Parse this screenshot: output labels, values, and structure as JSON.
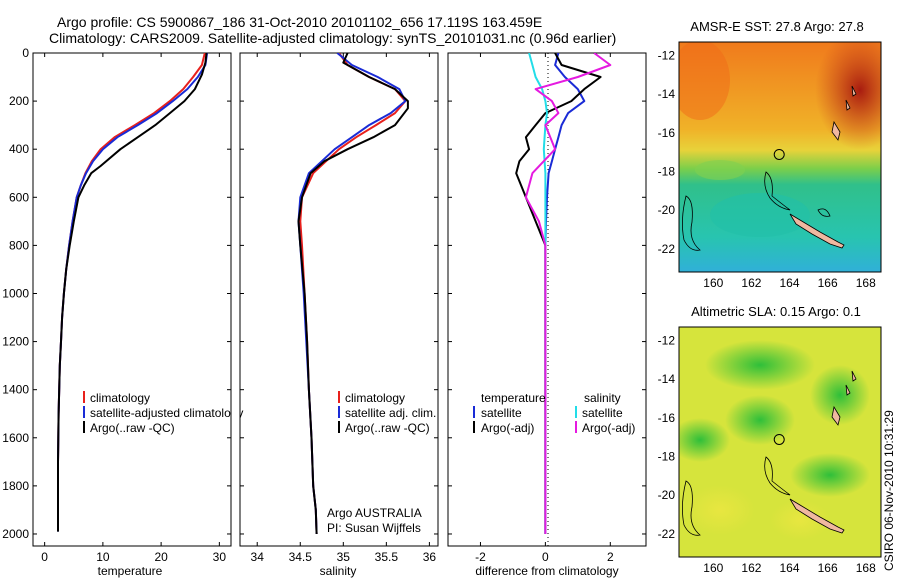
{
  "header": {
    "line1": "Argo profile: CS 5900867_186 31-Oct-2010 20101102_656 17.119S 163.459E",
    "line2": "Climatology: CARS2009. Satellite-adjusted climatology: synTS_20101031.nc (0.96d earlier)"
  },
  "credits": {
    "program": "Argo AUSTRALIA",
    "pi": "PI: Susan Wijffels",
    "stamp": "CSIRO 06-Nov-2010 10:31:29"
  },
  "colors": {
    "climatology": "#e8201c",
    "satellite": "#1a2bd6",
    "argo": "#000000",
    "salinity_sat": "#22dde8",
    "salinity_argo": "#e51ae0"
  },
  "chart_data": [
    {
      "type": "line",
      "id": "temperature",
      "xlabel": "temperature",
      "xlim": [
        -2,
        32
      ],
      "ylim": [
        0,
        2050
      ],
      "y_inverted": true,
      "xticks": [
        0,
        10,
        20,
        30
      ],
      "yticks": [
        0,
        200,
        400,
        600,
        800,
        1000,
        1200,
        1400,
        1600,
        1800,
        2000
      ],
      "legend": [
        "climatology",
        "satellite-adjusted climatology",
        "Argo(..raw -QC)"
      ],
      "series": [
        {
          "name": "climatology",
          "color": "#e8201c",
          "x": [
            27.5,
            27.0,
            25.5,
            23.8,
            21.5,
            18.8,
            15.5,
            12.0,
            9.6,
            8.1,
            7.0,
            6.2,
            5.5,
            4.8,
            4.2,
            3.7,
            3.3,
            3.0,
            2.8,
            2.6,
            2.5,
            2.4,
            2.35,
            2.3,
            2.3,
            2.3
          ],
          "y": [
            0,
            50,
            100,
            150,
            200,
            250,
            300,
            350,
            400,
            450,
            500,
            550,
            600,
            700,
            800,
            900,
            1000,
            1100,
            1200,
            1300,
            1400,
            1500,
            1600,
            1700,
            1800,
            1870
          ]
        },
        {
          "name": "satellite-adjusted climatology",
          "color": "#1a2bd6",
          "x": [
            27.9,
            27.6,
            26.3,
            24.5,
            22.0,
            19.3,
            16.0,
            12.5,
            10.0,
            8.3,
            7.1,
            6.2,
            5.5,
            4.8,
            4.2,
            3.7,
            3.3,
            3.0,
            2.8,
            2.6,
            2.5,
            2.4,
            2.35,
            2.3,
            2.3,
            2.3
          ],
          "y": [
            0,
            50,
            100,
            150,
            200,
            250,
            300,
            350,
            400,
            450,
            500,
            550,
            600,
            700,
            800,
            900,
            1000,
            1100,
            1200,
            1300,
            1400,
            1500,
            1600,
            1700,
            1800,
            1990
          ]
        },
        {
          "name": "Argo(..raw -QC)",
          "color": "#000000",
          "x": [
            27.8,
            27.6,
            27.0,
            25.8,
            24.0,
            21.5,
            19.0,
            16.0,
            13.0,
            9.6,
            8.0,
            6.8,
            5.8,
            5.0,
            4.3,
            3.7,
            3.3,
            3.0,
            2.8,
            2.6,
            2.5,
            2.4,
            2.35,
            2.3,
            2.3,
            2.3
          ],
          "y": [
            0,
            40,
            90,
            150,
            200,
            250,
            300,
            350,
            400,
            470,
            500,
            550,
            600,
            700,
            800,
            900,
            1000,
            1100,
            1200,
            1300,
            1400,
            1500,
            1600,
            1700,
            1800,
            1990
          ]
        }
      ]
    },
    {
      "type": "line",
      "id": "salinity",
      "xlabel": "salinity",
      "xlim": [
        33.8,
        36.1
      ],
      "ylim": [
        0,
        2050
      ],
      "y_inverted": true,
      "xticks": [
        34,
        34.5,
        35,
        35.5,
        36
      ],
      "legend": [
        "climatology",
        "satellite adj. clim.",
        "Argo(..raw -QC)"
      ],
      "series": [
        {
          "name": "climatology",
          "color": "#e8201c",
          "x": [
            34.95,
            35.05,
            35.3,
            35.6,
            35.72,
            35.6,
            35.38,
            35.15,
            34.95,
            34.8,
            34.65,
            34.52,
            34.5,
            34.52,
            34.55,
            34.58,
            34.6,
            34.63,
            34.65,
            34.68,
            34.69
          ],
          "y": [
            0,
            50,
            100,
            150,
            200,
            250,
            300,
            350,
            400,
            450,
            500,
            600,
            700,
            800,
            1000,
            1200,
            1400,
            1600,
            1800,
            1900,
            2000
          ]
        },
        {
          "name": "satellite adj. clim.",
          "color": "#1a2bd6",
          "x": [
            34.93,
            35.1,
            35.4,
            35.65,
            35.72,
            35.55,
            35.3,
            35.1,
            34.9,
            34.75,
            34.6,
            34.5,
            34.48,
            34.5,
            34.54,
            34.57,
            34.6,
            34.63,
            34.65,
            34.68,
            34.69
          ],
          "y": [
            0,
            50,
            100,
            150,
            200,
            250,
            300,
            350,
            400,
            450,
            500,
            600,
            700,
            800,
            1000,
            1200,
            1400,
            1600,
            1800,
            1900,
            2000
          ]
        },
        {
          "name": "Argo(..raw -QC)",
          "color": "#000000",
          "x": [
            35.05,
            35.0,
            35.3,
            35.6,
            35.75,
            35.75,
            35.6,
            35.35,
            35.05,
            34.78,
            34.62,
            34.52,
            34.48,
            34.5,
            34.55,
            34.58,
            34.6,
            34.63,
            34.65,
            34.68,
            34.69
          ],
          "y": [
            0,
            40,
            100,
            150,
            200,
            230,
            300,
            350,
            400,
            450,
            500,
            600,
            700,
            800,
            1000,
            1200,
            1400,
            1600,
            1800,
            1900,
            2000
          ]
        }
      ]
    },
    {
      "type": "line",
      "id": "difference",
      "xlabel": "difference from climatology",
      "xlim": [
        -3,
        3.1
      ],
      "ylim": [
        0,
        2050
      ],
      "y_inverted": true,
      "xticks": [
        -2,
        0,
        2
      ],
      "legend_columns": {
        "left_header": "temperature",
        "right_header": "salinity"
      },
      "legend": [
        "satellite",
        "Argo(-adj)",
        "satellite",
        "Argo(-adj)"
      ],
      "series": [
        {
          "name": "temperature satellite",
          "color": "#1a2bd6",
          "x": [
            0.4,
            0.3,
            0.6,
            1.0,
            1.2,
            0.7,
            0.5,
            0.4,
            0.3,
            0.2,
            0.1,
            0.05,
            0.02,
            0.0,
            0.0,
            0.0,
            0.0
          ],
          "y": [
            0,
            50,
            100,
            150,
            200,
            250,
            300,
            350,
            400,
            450,
            500,
            600,
            700,
            800,
            1000,
            1500,
            2000
          ]
        },
        {
          "name": "temperature Argo(-adj)",
          "color": "#000000",
          "x": [
            0.3,
            0.5,
            1.7,
            1.2,
            0.8,
            0.0,
            -0.3,
            -0.6,
            -0.5,
            -0.8,
            -0.9,
            -0.6,
            -0.3,
            0.0,
            0.0,
            0.0,
            0.0
          ],
          "y": [
            0,
            50,
            100,
            150,
            200,
            250,
            300,
            350,
            400,
            450,
            500,
            600,
            700,
            800,
            1000,
            1500,
            2000
          ]
        },
        {
          "name": "salinity satellite",
          "color": "#22dde8",
          "x": [
            -0.5,
            -0.4,
            -0.3,
            -0.1,
            0.0,
            0.05,
            0.0,
            -0.05,
            0.0,
            0.0,
            0.0,
            0.0,
            0.0,
            0.0,
            0.0
          ],
          "y": [
            0,
            50,
            100,
            150,
            200,
            250,
            300,
            400,
            500,
            600,
            800,
            1000,
            1400,
            1800,
            2000
          ]
        },
        {
          "name": "salinity Argo(-adj)",
          "color": "#e51ae0",
          "x": [
            1.5,
            2.0,
            1.0,
            -0.3,
            0.2,
            0.4,
            0.0,
            0.3,
            -0.4,
            -0.6,
            -0.2,
            0.0,
            0.0,
            0.0,
            0.0
          ],
          "y": [
            0,
            50,
            100,
            150,
            200,
            250,
            300,
            400,
            500,
            600,
            700,
            800,
            1000,
            1500,
            2000
          ]
        }
      ]
    },
    {
      "type": "heatmap",
      "id": "sst_map",
      "title": "AMSR-E SST: 27.8 Argo: 27.8",
      "xlim": [
        158.2,
        168.8
      ],
      "ylim": [
        -23.2,
        -11.3
      ],
      "xticks": [
        160,
        162,
        164,
        166,
        168
      ],
      "yticks": [
        -12,
        -14,
        -16,
        -18,
        -20,
        -22
      ],
      "marker": {
        "lon": 163.459,
        "lat": -17.119
      }
    },
    {
      "type": "heatmap",
      "id": "sla_map",
      "title": "Altimetric SLA: 0.15 Argo: 0.1",
      "xlim": [
        158.2,
        168.8
      ],
      "ylim": [
        -23.2,
        -11.3
      ],
      "xticks": [
        160,
        162,
        164,
        166,
        168
      ],
      "yticks": [
        -12,
        -14,
        -16,
        -18,
        -20,
        -22
      ],
      "marker": {
        "lon": 163.459,
        "lat": -17.119
      }
    }
  ]
}
